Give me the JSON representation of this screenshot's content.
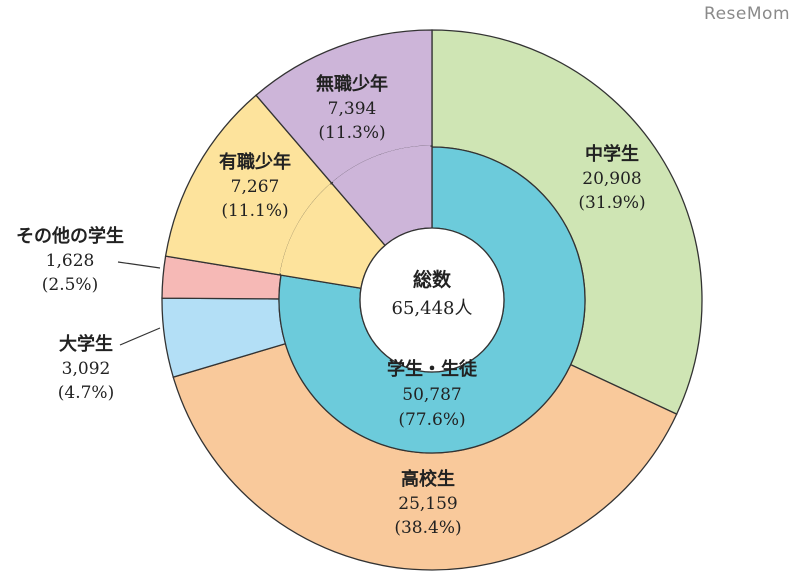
{
  "watermark": "ReseMom",
  "colors": {
    "chu": "#cfe5b4",
    "kou": "#f9c99b",
    "dai": "#b3dff6",
    "other": "#f6b9b6",
    "yushoku": "#fde39c",
    "mushoku": "#cdb5d9",
    "gakusei": "#6ccbdb",
    "stroke": "#333333"
  },
  "chart_data": {
    "type": "pie",
    "title": "",
    "center": {
      "name": "総数",
      "value": "65,448人"
    },
    "inner": [
      {
        "key": "gakusei",
        "name": "学生・生徒",
        "value": 50787,
        "value_label": "50,787",
        "pct_label": "(77.6%)"
      },
      {
        "key": "yushoku",
        "name": "有職少年",
        "value": 7267,
        "value_label": "",
        "pct_label": ""
      },
      {
        "key": "mushoku",
        "name": "無職少年",
        "value": 7394,
        "value_label": "",
        "pct_label": ""
      }
    ],
    "outer": [
      {
        "key": "chu",
        "name": "中学生",
        "value": 20908,
        "value_label": "20,908",
        "pct_label": "(31.9%)"
      },
      {
        "key": "kou",
        "name": "高校生",
        "value": 25159,
        "value_label": "25,159",
        "pct_label": "(38.4%)"
      },
      {
        "key": "dai",
        "name": "大学生",
        "value": 3092,
        "value_label": "3,092",
        "pct_label": "(4.7%)"
      },
      {
        "key": "other",
        "name": "その他の学生",
        "value": 1628,
        "value_label": "1,628",
        "pct_label": "(2.5%)"
      },
      {
        "key": "yushoku",
        "name": "有職少年",
        "value": 7267,
        "value_label": "7,267",
        "pct_label": "(11.1%)"
      },
      {
        "key": "mushoku",
        "name": "無職少年",
        "value": 7394,
        "value_label": "7,394",
        "pct_label": "(11.3%)"
      }
    ]
  }
}
